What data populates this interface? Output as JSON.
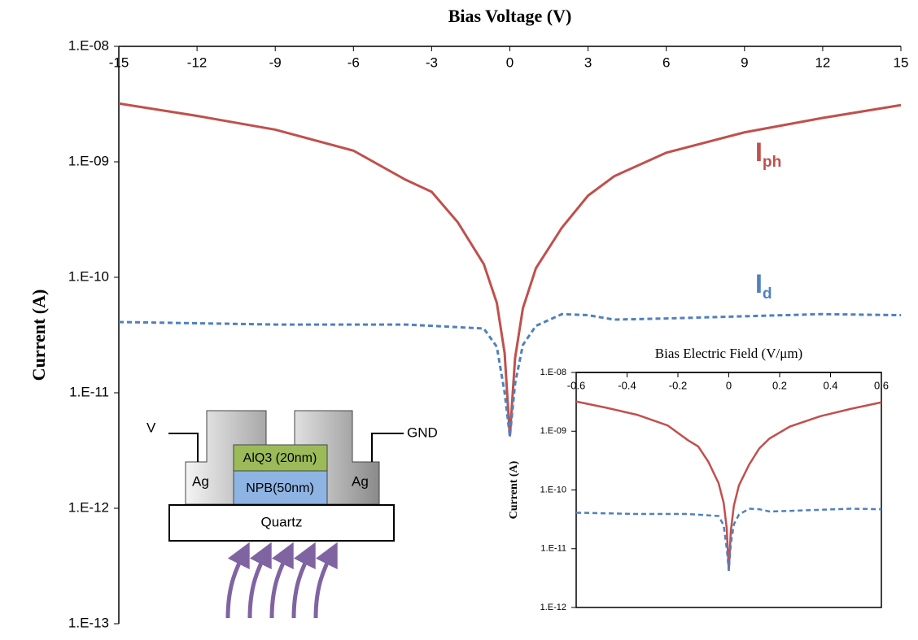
{
  "chart_data": [
    {
      "type": "line",
      "title": "Bias Voltage (V)",
      "y_label": "Current (A)",
      "log_y": true,
      "x": [
        -15,
        -12,
        -9,
        -6,
        -4,
        -3,
        -2,
        -1,
        -0.5,
        -0.2,
        0,
        0.2,
        0.5,
        1,
        2,
        3,
        4,
        6,
        9,
        12,
        15
      ],
      "series": [
        {
          "name": "Iph",
          "color": "#c0504d",
          "linestyle": "solid",
          "values": [
            3.2e-09,
            2.5e-09,
            1.9e-09,
            1.25e-09,
            7e-10,
            5.5e-10,
            3e-10,
            1.3e-10,
            6e-11,
            2.2e-11,
            4.2e-12,
            2e-11,
            5.4e-11,
            1.2e-10,
            2.7e-10,
            5.1e-10,
            7.5e-10,
            1.2e-09,
            1.8e-09,
            2.4e-09,
            3.1e-09
          ]
        },
        {
          "name": "Id",
          "color": "#4f81bd",
          "linestyle": "dashed",
          "values": [
            4.1e-11,
            4e-11,
            3.9e-11,
            3.9e-11,
            3.9e-11,
            3.8e-11,
            3.7e-11,
            3.6e-11,
            2.5e-11,
            1e-11,
            4.2e-12,
            1.2e-11,
            2.6e-11,
            3.8e-11,
            4.8e-11,
            4.7e-11,
            4.3e-11,
            4.4e-11,
            4.6e-11,
            4.8e-11,
            4.7e-11
          ]
        }
      ],
      "xlim": [
        -15,
        15
      ],
      "xticks": [
        -15,
        -12,
        -9,
        -6,
        -3,
        0,
        3,
        6,
        9,
        12,
        15
      ],
      "ylim": [
        1e-13,
        1e-08
      ],
      "yticks": [
        {
          "value": 1e-13,
          "label": "1.E-13"
        },
        {
          "value": 1e-12,
          "label": "1.E-12"
        },
        {
          "value": 1e-11,
          "label": "1.E-11"
        },
        {
          "value": 1e-10,
          "label": "1.E-10"
        },
        {
          "value": 1e-09,
          "label": "1.E-09"
        },
        {
          "value": 1e-08,
          "label": "1.E-08"
        }
      ]
    },
    {
      "type": "line",
      "title": "Bias Electric Field (V/μm)",
      "y_label": "Current (A)",
      "log_y": true,
      "x": [
        -0.6,
        -0.48,
        -0.36,
        -0.24,
        -0.16,
        -0.12,
        -0.08,
        -0.04,
        -0.02,
        -0.008,
        0,
        0.008,
        0.02,
        0.04,
        0.08,
        0.12,
        0.16,
        0.24,
        0.36,
        0.48,
        0.6
      ],
      "series": [
        {
          "color": "#c0504d",
          "linestyle": "solid",
          "values": [
            3.2e-09,
            2.5e-09,
            1.9e-09,
            1.25e-09,
            7e-10,
            5.5e-10,
            3e-10,
            1.3e-10,
            6e-11,
            2.2e-11,
            4.2e-12,
            2e-11,
            5.4e-11,
            1.2e-10,
            2.7e-10,
            5.1e-10,
            7.5e-10,
            1.2e-09,
            1.8e-09,
            2.4e-09,
            3.1e-09
          ]
        },
        {
          "color": "#4f81bd",
          "linestyle": "dashed",
          "values": [
            4.1e-11,
            4e-11,
            3.9e-11,
            3.9e-11,
            3.9e-11,
            3.8e-11,
            3.7e-11,
            3.6e-11,
            2.5e-11,
            1e-11,
            4.2e-12,
            1.2e-11,
            2.6e-11,
            3.8e-11,
            4.8e-11,
            4.7e-11,
            4.3e-11,
            4.4e-11,
            4.6e-11,
            4.8e-11,
            4.7e-11
          ]
        }
      ],
      "xlim": [
        -0.6,
        0.6
      ],
      "xticks": [
        -0.6,
        -0.4,
        -0.2,
        0,
        0.2,
        0.4,
        0.6
      ],
      "ylim": [
        1e-12,
        1e-08
      ],
      "yticks": [
        {
          "value": 1e-12,
          "label": "1.E-12"
        },
        {
          "value": 1e-11,
          "label": "1.E-11"
        },
        {
          "value": 1e-10,
          "label": "1.E-10"
        },
        {
          "value": 1e-09,
          "label": "1.E-09"
        },
        {
          "value": 1e-08,
          "label": "1.E-08"
        }
      ]
    }
  ],
  "diagram": {
    "v": "V",
    "gnd": "GND",
    "ag_left": "Ag",
    "ag_right": "Ag",
    "alq": "AlQ3 (20nm)",
    "npb": "NPB(50nm)",
    "substrate": "Quartz"
  }
}
